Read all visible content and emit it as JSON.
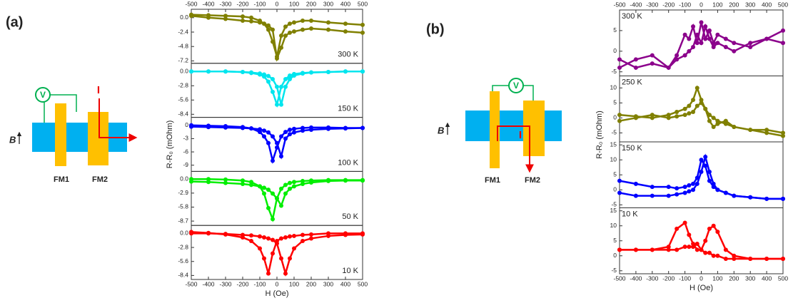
{
  "diagrams": [
    {
      "label": "(a)",
      "b": "B",
      "v": "V",
      "i": "I",
      "fm1": "FM1",
      "fm2": "FM2"
    },
    {
      "label": "(b)",
      "b": "B",
      "v": "V",
      "i": "I",
      "fm1": "FM1",
      "fm2": "FM2"
    }
  ],
  "chart_data": [
    {
      "type": "line",
      "annotation": "300 K",
      "color": "#808000",
      "x": [
        -500,
        -400,
        -300,
        -200,
        -150,
        -100,
        -75,
        -50,
        -25,
        0,
        25,
        50,
        75,
        100,
        150,
        200,
        300,
        400,
        500
      ],
      "series": [
        {
          "values": [
            0.5,
            0.4,
            0.3,
            0.2,
            0,
            -0.5,
            -1,
            -2,
            -4,
            -6.5,
            -3,
            -1.5,
            -1,
            -0.8,
            -0.5,
            -0.5,
            -0.8,
            -1,
            -1.2
          ]
        },
        {
          "values": [
            0.3,
            0,
            -0.2,
            -0.5,
            -0.6,
            -0.8,
            -1,
            -1.3,
            -2,
            -6.8,
            -5,
            -3,
            -2.5,
            -2.3,
            -2,
            -1.8,
            -2,
            -2.3,
            -2.5
          ]
        }
      ],
      "xlim": [
        -500,
        500
      ],
      "xticks": [
        -500,
        -400,
        -300,
        -200,
        -100,
        0,
        100,
        200,
        300,
        400,
        500
      ],
      "ylim": [
        -7.6,
        1.4
      ],
      "yticks": [
        {
          "value": 0,
          "label": "0.0"
        },
        -2.4,
        -4.8,
        -7.2
      ]
    },
    {
      "type": "line",
      "annotation": "150 K",
      "color": "#00e5ee",
      "x": [
        -500,
        -400,
        -300,
        -200,
        -150,
        -100,
        -75,
        -50,
        -25,
        0,
        25,
        50,
        75,
        100,
        150,
        200,
        300,
        400,
        500
      ],
      "series": [
        {
          "values": [
            0,
            0,
            0,
            -0.1,
            -0.3,
            -0.6,
            -1,
            -2,
            -4,
            -6.5,
            -3,
            -1.5,
            -0.8,
            -0.5,
            -0.3,
            -0.2,
            -0.1,
            0,
            0
          ]
        },
        {
          "values": [
            0,
            0,
            0,
            -0.1,
            -0.2,
            -0.4,
            -0.6,
            -0.9,
            -1.5,
            -3,
            -6.5,
            -3,
            -1.5,
            -0.8,
            -0.4,
            -0.2,
            -0.1,
            0,
            0
          ]
        }
      ],
      "xlim": [
        -500,
        500
      ],
      "ylim": [
        -9,
        1.6
      ],
      "yticks": [
        {
          "value": 0,
          "label": "0.0"
        },
        -2.8,
        -5.6,
        -8.4
      ]
    },
    {
      "type": "line",
      "annotation": "100 K",
      "color": "#0000ff",
      "ylabel": "R-R₀ (mOhm)",
      "x": [
        -500,
        -400,
        -300,
        -200,
        -150,
        -100,
        -75,
        -50,
        -25,
        0,
        25,
        50,
        75,
        100,
        150,
        200,
        300,
        400,
        500
      ],
      "series": [
        {
          "values": [
            0,
            -0.1,
            -0.2,
            -0.4,
            -0.7,
            -1.5,
            -2.5,
            -4,
            -8,
            -5,
            -2.5,
            -1.5,
            -1,
            -0.8,
            -0.6,
            -0.5,
            -0.5,
            -0.6,
            -0.6
          ]
        },
        {
          "values": [
            -0.3,
            -0.4,
            -0.5,
            -0.6,
            -0.7,
            -0.9,
            -1.2,
            -1.6,
            -2.5,
            -4,
            -7,
            -3,
            -2,
            -1.6,
            -1.2,
            -1,
            -0.8,
            -0.7,
            -0.6
          ]
        }
      ],
      "xlim": [
        -500,
        500
      ],
      "ylim": [
        -10.4,
        1.8
      ],
      "yticks": [
        0,
        -3,
        -6,
        -9
      ]
    },
    {
      "type": "line",
      "annotation": "50 K",
      "color": "#00ee00",
      "x": [
        -500,
        -400,
        -300,
        -200,
        -150,
        -100,
        -75,
        -50,
        -25,
        0,
        25,
        50,
        75,
        100,
        150,
        200,
        300,
        400,
        500
      ],
      "series": [
        {
          "values": [
            0,
            0,
            -0.1,
            -0.3,
            -0.6,
            -1.5,
            -3,
            -6,
            -8.3,
            -4,
            -2,
            -1.2,
            -0.8,
            -0.6,
            -0.4,
            -0.3,
            -0.2,
            -0.2,
            -0.2
          ]
        },
        {
          "values": [
            -0.5,
            -0.6,
            -0.8,
            -1,
            -1.2,
            -1.5,
            -1.8,
            -2.2,
            -3,
            -4,
            -5.5,
            -3,
            -2,
            -1.5,
            -1,
            -0.7,
            -0.4,
            -0.3,
            -0.3
          ]
        }
      ],
      "xlim": [
        -500,
        500
      ],
      "ylim": [
        -9.6,
        1.6
      ],
      "yticks": [
        {
          "value": 0,
          "label": "0.0"
        },
        -2.9,
        -5.8,
        -8.7
      ]
    },
    {
      "type": "line",
      "annotation": "10 K",
      "color": "#ff0000",
      "xlabel": "H (Oe)",
      "x": [
        -500,
        -400,
        -300,
        -200,
        -150,
        -100,
        -75,
        -50,
        -25,
        0,
        25,
        50,
        75,
        100,
        150,
        200,
        300,
        400,
        500
      ],
      "series": [
        {
          "values": [
            0.3,
            0.1,
            -0.2,
            -0.8,
            -1.5,
            -3,
            -5,
            -8,
            -4,
            -1.5,
            -1,
            -0.8,
            -0.6,
            -0.5,
            -0.3,
            -0.2,
            0,
            0,
            0
          ]
        },
        {
          "values": [
            0,
            0,
            -0.1,
            -0.3,
            -0.4,
            -0.6,
            -0.8,
            -1,
            -1.3,
            -2,
            -5,
            -8,
            -5,
            -3,
            -1.5,
            -1,
            -0.5,
            -0.3,
            -0.2
          ]
        }
      ],
      "xlim": [
        -500,
        500
      ],
      "xticks": [
        -500,
        -400,
        -300,
        -200,
        -100,
        0,
        100,
        200,
        300,
        400,
        500
      ],
      "ylim": [
        -9.2,
        1.6
      ],
      "yticks": [
        {
          "value": 0,
          "label": "0.0"
        },
        -2.8,
        -5.6,
        -8.4
      ]
    },
    {
      "type": "line",
      "annotation": "300 K",
      "color": "#8b008b",
      "x": [
        -500,
        -400,
        -300,
        -200,
        -150,
        -100,
        -75,
        -50,
        -25,
        0,
        25,
        50,
        75,
        100,
        150,
        200,
        300,
        400,
        500
      ],
      "series": [
        {
          "values": [
            -2,
            -4,
            -3,
            -4,
            -1,
            4,
            3,
            6,
            2,
            7,
            3,
            5,
            2,
            4,
            3,
            2,
            1,
            3,
            5
          ]
        },
        {
          "values": [
            -4,
            -2,
            -1,
            -4,
            -2,
            -1,
            0,
            1,
            4,
            2,
            6,
            3,
            1,
            2,
            1,
            0,
            2,
            3,
            2
          ]
        }
      ],
      "xlim": [
        -500,
        500
      ],
      "xticks": [
        -500,
        -400,
        -300,
        -200,
        -100,
        0,
        100,
        200,
        300,
        400,
        500
      ],
      "ylim": [
        -6,
        10
      ],
      "yticks": [
        -5,
        0,
        5
      ]
    },
    {
      "type": "line",
      "annotation": "250 K",
      "color": "#808000",
      "ylabel": "R-R₀ (mOhm)",
      "x": [
        -500,
        -400,
        -300,
        -200,
        -150,
        -100,
        -75,
        -50,
        -25,
        0,
        25,
        50,
        75,
        100,
        150,
        200,
        300,
        400,
        500
      ],
      "series": [
        {
          "values": [
            1,
            0.5,
            0,
            1,
            2,
            3,
            4,
            6,
            10,
            6,
            3,
            1,
            0,
            -1,
            -2,
            -3,
            -4,
            -4,
            -5
          ]
        },
        {
          "values": [
            -1,
            0,
            1,
            0,
            0.5,
            1,
            1.5,
            2,
            4,
            5,
            3,
            -1,
            -3,
            -2,
            -1,
            -3,
            -4,
            -5,
            -6
          ]
        }
      ],
      "xlim": [
        -500,
        500
      ],
      "ylim": [
        -8,
        14
      ],
      "yticks": [
        -5,
        0,
        5,
        10
      ]
    },
    {
      "type": "line",
      "annotation": "150 K",
      "color": "#0000ff",
      "x": [
        -500,
        -400,
        -300,
        -200,
        -150,
        -100,
        -75,
        -50,
        -25,
        0,
        25,
        50,
        75,
        100,
        150,
        200,
        300,
        400,
        500
      ],
      "series": [
        {
          "values": [
            3,
            2,
            1,
            1,
            0.5,
            1,
            1.5,
            2,
            4,
            10,
            8,
            3,
            1,
            0,
            -1,
            -2,
            -2.5,
            -3,
            -3
          ]
        },
        {
          "values": [
            -1,
            -2,
            -2,
            -2,
            -1.5,
            -1,
            -0.5,
            0,
            2,
            6,
            11,
            6,
            2,
            0,
            -1,
            -2,
            -2.5,
            -3,
            -3
          ]
        }
      ],
      "xlim": [
        -500,
        500
      ],
      "ylim": [
        -6,
        16
      ],
      "yticks": [
        -5,
        0,
        5,
        10,
        15
      ]
    },
    {
      "type": "line",
      "annotation": "10 K",
      "color": "#ff0000",
      "xlabel": "H (Oe)",
      "x": [
        -500,
        -400,
        -300,
        -200,
        -150,
        -100,
        -75,
        -50,
        -25,
        0,
        25,
        50,
        75,
        100,
        150,
        200,
        300,
        400,
        500
      ],
      "series": [
        {
          "values": [
            2,
            2,
            2,
            3,
            9,
            11,
            7,
            4,
            2,
            2,
            1,
            1,
            0,
            0,
            -1,
            -1,
            -1,
            -1,
            -1
          ]
        },
        {
          "values": [
            2,
            2,
            2,
            2,
            2,
            3,
            3,
            3,
            4,
            2,
            5,
            9,
            10,
            8,
            2,
            0,
            -1,
            -1,
            -1
          ]
        }
      ],
      "xlim": [
        -500,
        500
      ],
      "xticks": [
        -500,
        -400,
        -300,
        -200,
        -100,
        0,
        100,
        200,
        300,
        400,
        500
      ],
      "ylim": [
        -6,
        16
      ],
      "yticks": [
        -5,
        0,
        5,
        10,
        15
      ]
    }
  ]
}
